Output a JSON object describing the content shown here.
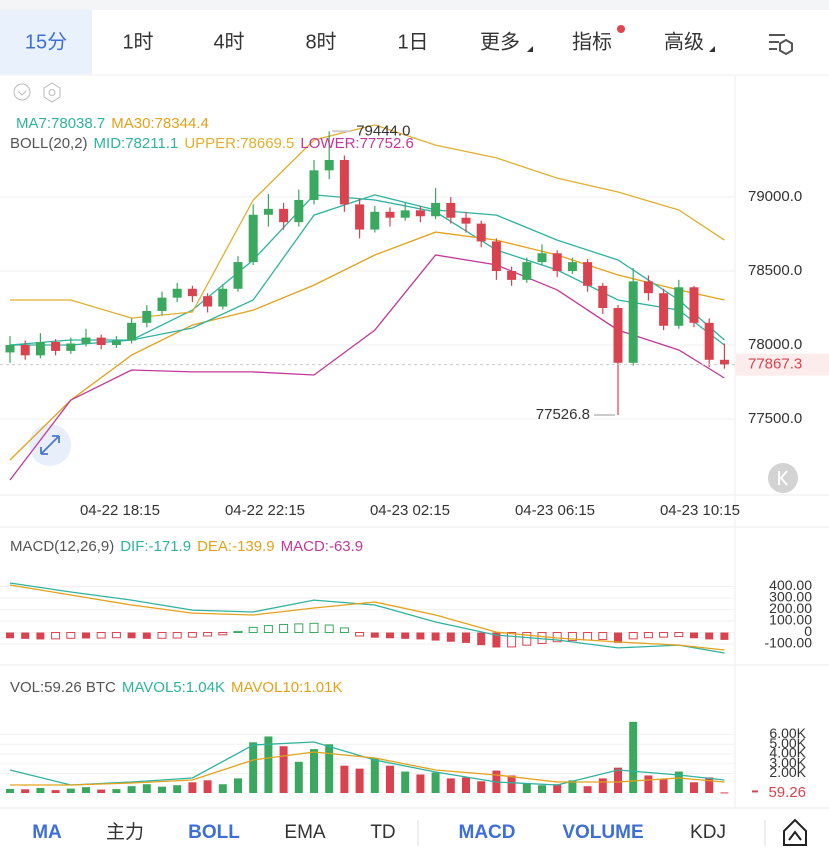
{
  "tabs": {
    "items": [
      "15分",
      "1时",
      "4时",
      "8时",
      "1日",
      "更多",
      "指标",
      "高级"
    ],
    "selected": 0
  },
  "toolbar": {
    "items": [
      {
        "label": "MA",
        "active": true
      },
      {
        "label": "主力",
        "active": false
      },
      {
        "label": "BOLL",
        "active": true
      },
      {
        "label": "EMA",
        "active": false
      },
      {
        "label": "TD",
        "active": false
      },
      {
        "label": "MACD",
        "active": true
      },
      {
        "label": "VOLUME",
        "active": true
      },
      {
        "label": "KDJ",
        "active": false
      }
    ]
  },
  "chart_data": [
    {
      "type": "candlestick",
      "indicator_label": "BOLL(20,2)",
      "up_color": "#3aa85e",
      "down_color": "#d9434f",
      "ylim": [
        77000,
        79800
      ],
      "yticks": [
        {
          "value": 79000,
          "label": "79000.0"
        },
        {
          "value": 78500,
          "label": "78500.0"
        },
        {
          "value": 78000,
          "label": "78000.0"
        },
        {
          "value": 77500,
          "label": "77500.0"
        }
      ],
      "time_labels": [
        "04-22 18:15",
        "04-22 22:15",
        "04-23 02:15",
        "04-23 06:15",
        "04-23 10:15"
      ],
      "high_marker": {
        "value": 79444,
        "label": "79444.0"
      },
      "candles": [
        [
          77950,
          78060,
          77880,
          78000
        ],
        [
          78000,
          78030,
          77900,
          77930
        ],
        [
          77930,
          78080,
          77910,
          78020
        ],
        [
          78020,
          78040,
          77930,
          77960
        ],
        [
          77960,
          78050,
          77940,
          78010
        ],
        [
          78010,
          78110,
          77990,
          78050
        ],
        [
          78050,
          78070,
          77970,
          78000
        ],
        [
          78000,
          78060,
          77980,
          78030
        ],
        [
          78030,
          78180,
          78010,
          78150
        ],
        [
          78150,
          78270,
          78120,
          78230
        ],
        [
          78230,
          78360,
          78200,
          78320
        ],
        [
          78320,
          78420,
          78290,
          78380
        ],
        [
          78380,
          78400,
          78290,
          78330
        ],
        [
          78330,
          78350,
          78220,
          78260
        ],
        [
          78260,
          78410,
          78240,
          78380
        ],
        [
          78380,
          78600,
          78360,
          78560
        ],
        [
          78560,
          78950,
          78540,
          78880
        ],
        [
          78880,
          79020,
          78800,
          78920
        ],
        [
          78920,
          78960,
          78780,
          78830
        ],
        [
          78830,
          79050,
          78800,
          78980
        ],
        [
          78980,
          79250,
          78950,
          79180
        ],
        [
          79180,
          79444,
          79120,
          79250
        ],
        [
          79250,
          79280,
          78900,
          78950
        ],
        [
          78950,
          78990,
          78720,
          78780
        ],
        [
          78780,
          78940,
          78760,
          78900
        ],
        [
          78900,
          78930,
          78800,
          78860
        ],
        [
          78860,
          78960,
          78840,
          78910
        ],
        [
          78910,
          78940,
          78830,
          78870
        ],
        [
          78870,
          79060,
          78850,
          78960
        ],
        [
          78960,
          79000,
          78820,
          78860
        ],
        [
          78860,
          78900,
          78760,
          78820
        ],
        [
          78820,
          78840,
          78660,
          78700
        ],
        [
          78700,
          78720,
          78440,
          78500
        ],
        [
          78500,
          78530,
          78400,
          78440
        ],
        [
          78440,
          78590,
          78420,
          78560
        ],
        [
          78560,
          78680,
          78540,
          78620
        ],
        [
          78620,
          78640,
          78460,
          78500
        ],
        [
          78500,
          78590,
          78480,
          78560
        ],
        [
          78560,
          78580,
          78360,
          78400
        ],
        [
          78400,
          78420,
          78210,
          78250
        ],
        [
          78250,
          78270,
          77526.8,
          77880
        ],
        [
          77880,
          78520,
          77860,
          78430
        ],
        [
          78430,
          78470,
          78300,
          78350
        ],
        [
          78350,
          78380,
          78100,
          78130
        ],
        [
          78130,
          78440,
          78110,
          78390
        ],
        [
          78390,
          78400,
          78120,
          78150
        ],
        [
          78150,
          78180,
          77850,
          77900
        ],
        [
          77900,
          78010,
          77840,
          77867.3
        ]
      ],
      "line_x": [
        0,
        4,
        8,
        12,
        16,
        20,
        24,
        28,
        32,
        36,
        40,
        44,
        47
      ],
      "series": [
        {
          "name": "MA7:78038.7",
          "color": "#2fb3a0",
          "values": [
            78000,
            78034,
            78034,
            78236,
            78574,
            79014,
            78980,
            78899,
            78642,
            78507,
            78304,
            78236,
            78000
          ]
        },
        {
          "name": "MA30:78344.4",
          "color": "#e3a21a",
          "values": [
            77223,
            77628,
            77932,
            78135,
            78236,
            78405,
            78608,
            78763,
            78709,
            78608,
            78473,
            78372,
            78304
          ]
        },
        {
          "name": "MID:78211.1",
          "color": "#2fb3a0",
          "values": [
            78000,
            78000,
            78034,
            78115,
            78304,
            78878,
            79014,
            78912,
            78878,
            78709,
            78574,
            78304,
            78034
          ]
        },
        {
          "name": "UPPER:78669.5",
          "color": "#e0b030",
          "values": [
            78304,
            78304,
            78182,
            78223,
            78980,
            79385,
            79487,
            79351,
            79264,
            79128,
            79034,
            78912,
            78709
          ]
        },
        {
          "name": "LOWER:77752.6",
          "color": "#c2389a",
          "values": [
            77088,
            77628,
            77831,
            77818,
            77818,
            77797,
            78101,
            78608,
            78541,
            78372,
            78101,
            77966,
            77777
          ]
        }
      ]
    },
    {
      "type": "bar",
      "title": "MACD(12,26,9)",
      "histogram_name": {
        "name": "MACD:-63.9",
        "color": "#c2389a"
      },
      "ylim": [
        -230,
        630
      ],
      "yticks": [
        {
          "value": 400,
          "label": "400.00"
        },
        {
          "value": 300,
          "label": "300.00"
        },
        {
          "value": 200,
          "label": "200.00"
        },
        {
          "value": 100,
          "label": "100.00"
        },
        0,
        {
          "value": -100,
          "label": "-100.00"
        }
      ],
      "values": [
        -50,
        -55,
        -60,
        -55,
        -50,
        -52,
        -48,
        -45,
        -50,
        -55,
        -50,
        -48,
        -40,
        -30,
        -20,
        10,
        45,
        60,
        70,
        75,
        80,
        65,
        40,
        -30,
        -45,
        -50,
        -55,
        -60,
        -70,
        -80,
        -90,
        -110,
        -130,
        -125,
        -110,
        -95,
        -80,
        -70,
        -65,
        -60,
        -90,
        -55,
        -45,
        -40,
        -35,
        -50,
        -60,
        -63.9
      ],
      "line_x": [
        0,
        4,
        8,
        12,
        16,
        20,
        24,
        28,
        32,
        36,
        40,
        44,
        47
      ],
      "series": [
        {
          "name": "DIF:-171.9",
          "color": "#2fb3a0",
          "values": [
            430,
            352,
            282,
            195,
            178,
            282,
            239,
            91,
            -22,
            -65,
            -134,
            -109,
            -178
          ]
        },
        {
          "name": "DEA:-139.9",
          "color": "#e3a21a",
          "values": [
            413,
            326,
            239,
            169,
            152,
            213,
            265,
            152,
            4,
            -48,
            -82,
            -109,
            -152
          ]
        }
      ]
    },
    {
      "type": "bar",
      "title": "VOL:59.26 BTC",
      "ylim": [
        0,
        9500
      ],
      "yticks": [
        {
          "value": 6000,
          "label": "6.00K"
        },
        {
          "value": 5000,
          "label": "5.00K"
        },
        {
          "value": 4000,
          "label": "4.00K"
        },
        {
          "value": 3000,
          "label": "3.00K"
        },
        {
          "value": 2000,
          "label": "2.00K"
        }
      ],
      "values": [
        420,
        380,
        520,
        300,
        450,
        600,
        350,
        400,
        700,
        900,
        650,
        800,
        1100,
        1300,
        900,
        1500,
        5200,
        5800,
        4800,
        3200,
        4500,
        5000,
        2800,
        2500,
        3600,
        2800,
        2200,
        1900,
        2100,
        1500,
        1600,
        1200,
        2300,
        1800,
        1000,
        800,
        900,
        1300,
        700,
        1500,
        2600,
        7300,
        1800,
        1400,
        2200,
        1100,
        1600,
        59.26
      ],
      "line_x": [
        0,
        4,
        8,
        12,
        16,
        20,
        24,
        28,
        32,
        36,
        40,
        44,
        47
      ],
      "series": [
        {
          "name": "MAVOL5:1.04K",
          "color": "#2fb3a0",
          "values": [
            2359,
            821,
            1128,
            1538,
            4923,
            5231,
            3385,
            2154,
            1128,
            821,
            2359,
            1846,
            1333
          ]
        },
        {
          "name": "MAVOL10:1.01K",
          "color": "#e3a21a",
          "values": [
            821,
            821,
            1026,
            1333,
            3385,
            4205,
            3590,
            2359,
            1846,
            1128,
            1128,
            1538,
            1128
          ]
        }
      ]
    }
  ]
}
